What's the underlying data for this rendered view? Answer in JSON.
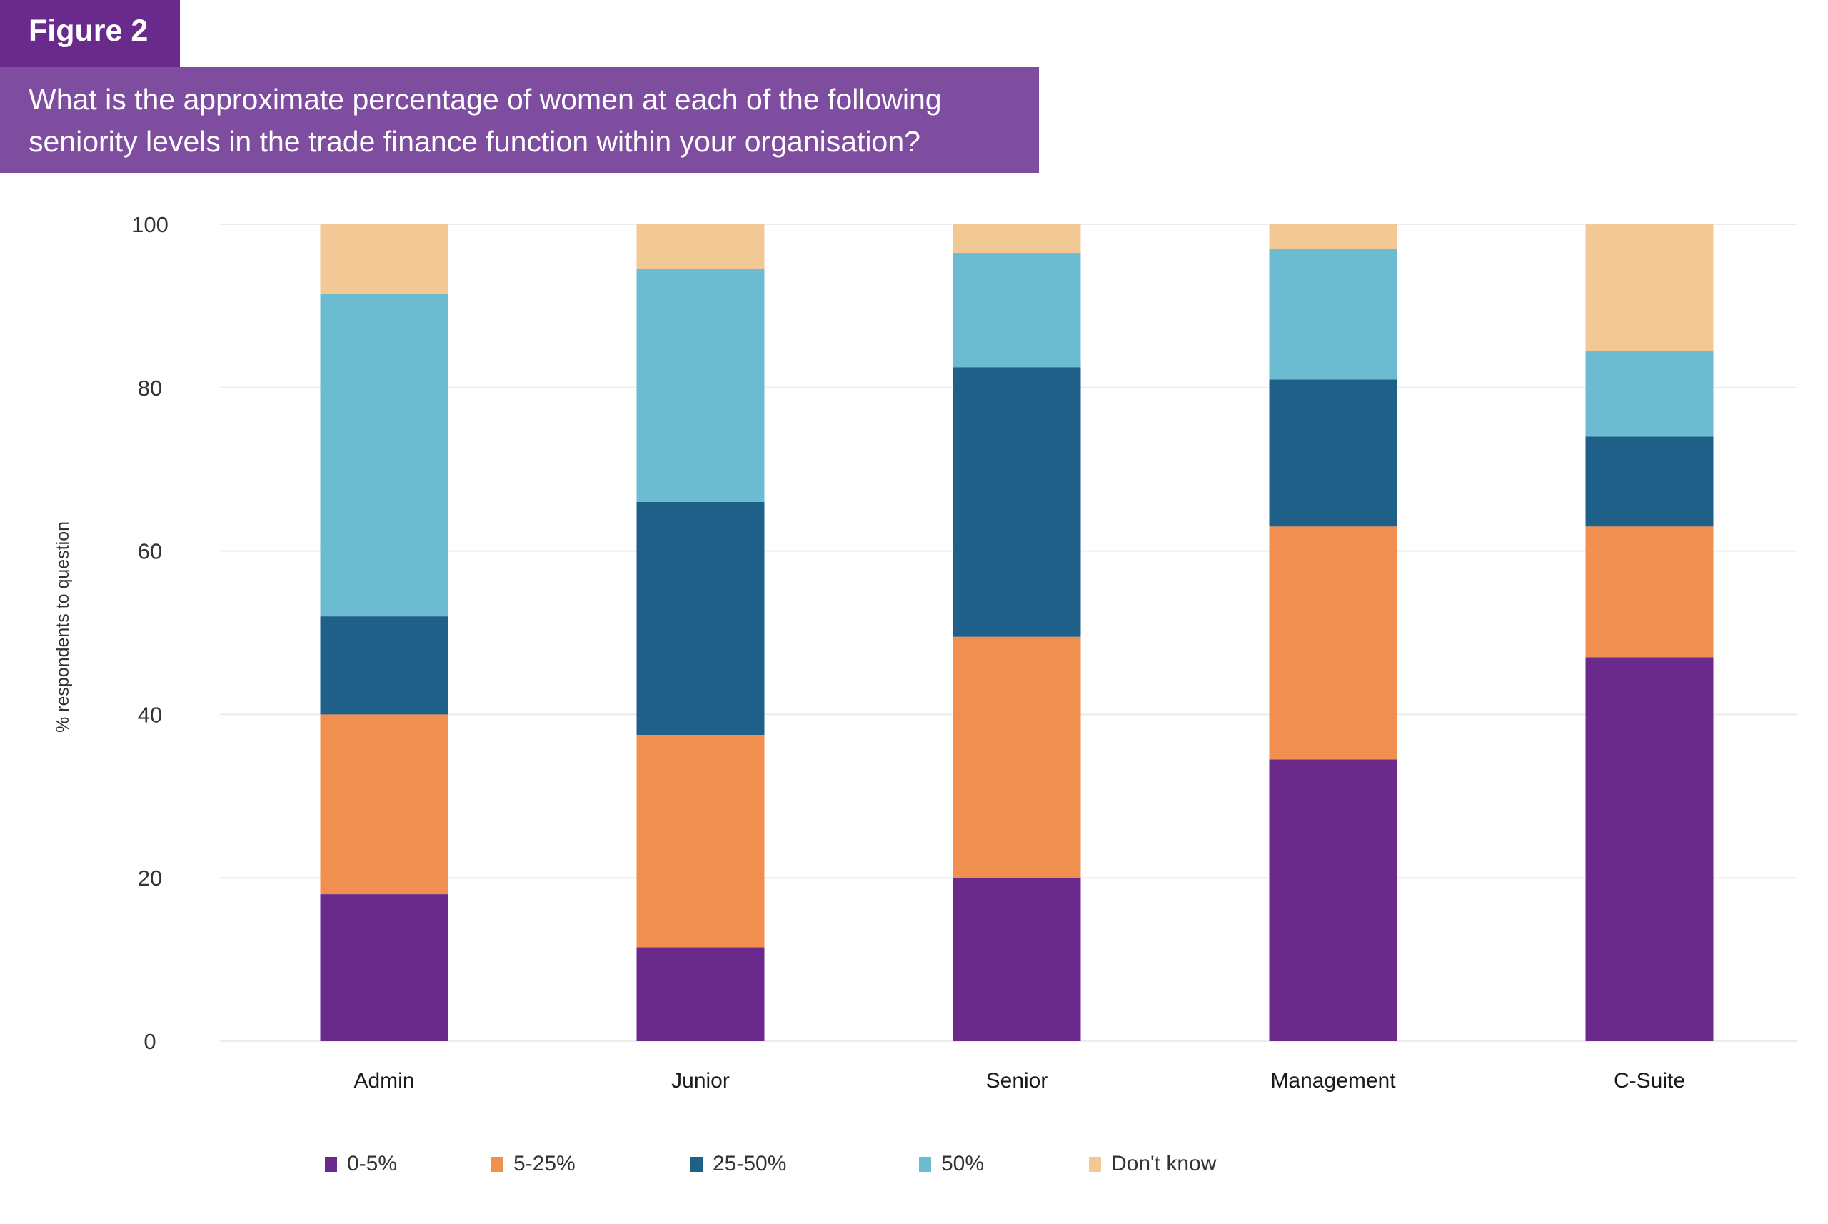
{
  "header": {
    "figure_label": "Figure 2",
    "question_lines": [
      "What is the approximate percentage of women at each of the following",
      "seniority levels in the trade finance function within your organisation?"
    ]
  },
  "colors": {
    "header_tab": "#6a2a8c",
    "header_box": "#7f4da0",
    "gridline": "#ececec"
  },
  "chart_data": {
    "type": "bar",
    "stacked": true,
    "title": "What is the approximate percentage of women at each of the following seniority levels in the trade finance function within your organisation?",
    "xlabel": "",
    "ylabel": "% respondents to question",
    "ylim": [
      0,
      100
    ],
    "yticks": [
      0,
      20,
      40,
      60,
      80,
      100
    ],
    "grid": true,
    "legend_position": "bottom",
    "categories": [
      "Admin",
      "Junior",
      "Senior",
      "Management",
      "C-Suite"
    ],
    "series": [
      {
        "name": "0-5%",
        "color": "#6a2a8c",
        "values": [
          18,
          11.5,
          20,
          34.5,
          47
        ]
      },
      {
        "name": "5-25%",
        "color": "#f08f50",
        "values": [
          22,
          26,
          29.5,
          28.5,
          16
        ]
      },
      {
        "name": "25-50%",
        "color": "#1f6089",
        "values": [
          12,
          28.5,
          33,
          18,
          11
        ]
      },
      {
        "name": "50%",
        "color": "#6bbcd0",
        "values": [
          39.5,
          28.5,
          14,
          16,
          10.5
        ]
      },
      {
        "name": "Don't know",
        "color": "#f2c894",
        "values": [
          8.5,
          5.5,
          3.5,
          3,
          15.5
        ]
      }
    ]
  }
}
